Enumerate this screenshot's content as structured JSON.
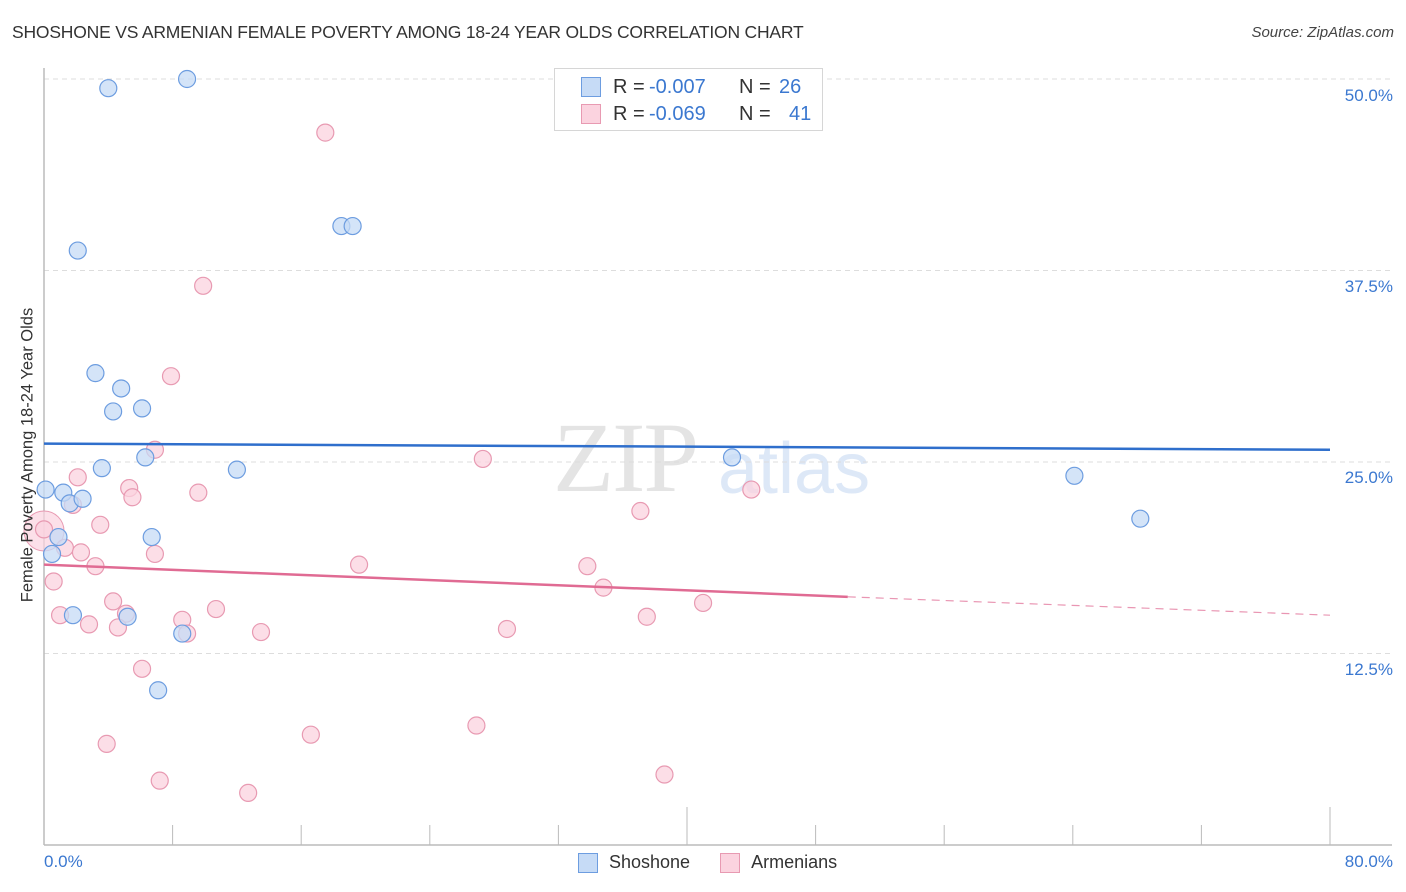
{
  "header": {
    "title": "SHOSHONE VS ARMENIAN FEMALE POVERTY AMONG 18-24 YEAR OLDS CORRELATION CHART",
    "source": "Source: ZipAtlas.com"
  },
  "watermark": {
    "zip": "ZIP",
    "atlas": "atlas"
  },
  "axes": {
    "ylabel": "Female Poverty Among 18-24 Year Olds",
    "yticks": [
      "50.0%",
      "37.5%",
      "25.0%",
      "12.5%"
    ],
    "xticks": [
      "0.0%",
      "80.0%"
    ]
  },
  "legend": {
    "rows": [
      {
        "r_label": "R =",
        "r_value": "-0.007",
        "n_label": "N =",
        "n_value": "26",
        "color": "#a9c8f0"
      },
      {
        "r_label": "R =",
        "r_value": "-0.069",
        "n_label": "N =",
        "n_value": "41",
        "color": "#f7b9cb"
      }
    ],
    "series": [
      {
        "name": "Shoshone",
        "color": "#a9c8f0"
      },
      {
        "name": "Armenians",
        "color": "#f7b9cb"
      }
    ]
  },
  "colors": {
    "shoshone_fill": "#c6dbf6",
    "shoshone_stroke": "#6d9de0",
    "shoshone_line": "#2f6fcc",
    "armenian_fill": "#fbd3df",
    "armenian_stroke": "#e89ab2",
    "armenian_line": "#e06b93",
    "grid": "#dddddd",
    "tick_text": "#3b78d0"
  },
  "chart_data": {
    "type": "scatter",
    "title": "SHOSHONE VS ARMENIAN FEMALE POVERTY AMONG 18-24 YEAR OLDS CORRELATION CHART",
    "xlabel": "",
    "ylabel": "Female Poverty Among 18-24 Year Olds",
    "xlim": [
      0,
      80
    ],
    "ylim": [
      0,
      50
    ],
    "y_ticks": [
      12.5,
      25.0,
      37.5,
      50.0
    ],
    "x_ticks_labeled": [
      0,
      80
    ],
    "grid": true,
    "legend_position": "top-center",
    "series": [
      {
        "name": "Shoshone",
        "R": -0.007,
        "N": 26,
        "trend": {
          "x": [
            0,
            80
          ],
          "y": [
            26.2,
            25.8
          ]
        },
        "points": [
          [
            4.0,
            49.4
          ],
          [
            8.9,
            50.0
          ],
          [
            2.1,
            38.8
          ],
          [
            18.5,
            40.4
          ],
          [
            19.2,
            40.4
          ],
          [
            3.2,
            30.8
          ],
          [
            4.8,
            29.8
          ],
          [
            4.3,
            28.3
          ],
          [
            6.1,
            28.5
          ],
          [
            6.3,
            25.3
          ],
          [
            3.6,
            24.6
          ],
          [
            12.0,
            24.5
          ],
          [
            42.8,
            25.3
          ],
          [
            64.1,
            24.1
          ],
          [
            68.2,
            21.3
          ],
          [
            0.1,
            23.2
          ],
          [
            1.2,
            23.0
          ],
          [
            1.6,
            22.3
          ],
          [
            2.4,
            22.6
          ],
          [
            0.9,
            20.1
          ],
          [
            0.5,
            19.0
          ],
          [
            6.7,
            20.1
          ],
          [
            1.8,
            15.0
          ],
          [
            5.2,
            14.9
          ],
          [
            8.6,
            13.8
          ],
          [
            7.1,
            10.1
          ]
        ]
      },
      {
        "name": "Armenians",
        "R": -0.069,
        "N": 41,
        "trend": {
          "x": [
            0,
            50
          ],
          "y": [
            18.3,
            16.2
          ],
          "dashed_extension": {
            "x": [
              50,
              80
            ],
            "y": [
              16.2,
              15.0
            ]
          }
        },
        "points": [
          [
            17.5,
            46.5
          ],
          [
            9.9,
            36.5
          ],
          [
            7.9,
            30.6
          ],
          [
            6.9,
            25.8
          ],
          [
            27.3,
            25.2
          ],
          [
            2.1,
            24.0
          ],
          [
            5.3,
            23.3
          ],
          [
            9.6,
            23.0
          ],
          [
            5.5,
            22.7
          ],
          [
            1.8,
            22.2
          ],
          [
            44.0,
            23.2
          ],
          [
            37.1,
            21.8
          ],
          [
            3.5,
            20.9
          ],
          [
            0.0,
            20.6
          ],
          [
            1.3,
            19.4
          ],
          [
            2.3,
            19.1
          ],
          [
            6.9,
            19.0
          ],
          [
            3.2,
            18.2
          ],
          [
            19.6,
            18.3
          ],
          [
            33.8,
            18.2
          ],
          [
            34.8,
            16.8
          ],
          [
            0.6,
            17.2
          ],
          [
            4.3,
            15.9
          ],
          [
            10.7,
            15.4
          ],
          [
            41.0,
            15.8
          ],
          [
            1.0,
            15.0
          ],
          [
            5.1,
            15.1
          ],
          [
            37.5,
            14.9
          ],
          [
            2.8,
            14.4
          ],
          [
            4.6,
            14.2
          ],
          [
            8.6,
            14.7
          ],
          [
            8.9,
            13.8
          ],
          [
            13.5,
            13.9
          ],
          [
            28.8,
            14.1
          ],
          [
            6.1,
            11.5
          ],
          [
            16.6,
            7.2
          ],
          [
            26.9,
            7.8
          ],
          [
            3.9,
            6.6
          ],
          [
            7.2,
            4.2
          ],
          [
            38.6,
            4.6
          ],
          [
            12.7,
            3.4
          ]
        ]
      }
    ]
  }
}
